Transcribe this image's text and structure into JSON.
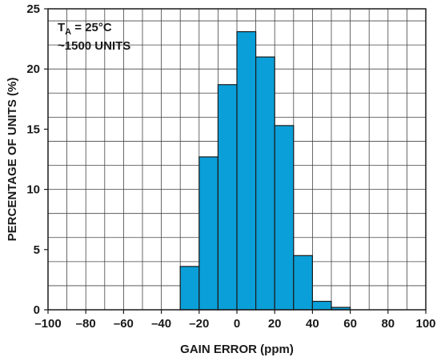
{
  "chart_data": {
    "type": "bar",
    "xlabel": "GAIN ERROR (ppm)",
    "ylabel": "PERCENTAGE OF UNITS (%)",
    "xlim": [
      -100,
      100
    ],
    "ylim": [
      0,
      25
    ],
    "xticks": [
      -100,
      -80,
      -60,
      -40,
      -20,
      0,
      20,
      40,
      60,
      80,
      100
    ],
    "yticks": [
      0,
      5,
      10,
      15,
      20,
      25
    ],
    "x_tick_labels": [
      "–100",
      "–80",
      "–60",
      "–40",
      "–20",
      "0",
      "20",
      "40",
      "60",
      "80",
      "100"
    ],
    "y_tick_labels": [
      "0",
      "5",
      "10",
      "15",
      "20",
      "25"
    ],
    "x_minor_step": 10,
    "y_minor_step": 2,
    "grid": true,
    "bin_width": 10,
    "bins": [
      {
        "start": -30,
        "end": -20,
        "value": 3.6
      },
      {
        "start": -20,
        "end": -10,
        "value": 12.7
      },
      {
        "start": -10,
        "end": 0,
        "value": 18.7
      },
      {
        "start": 0,
        "end": 10,
        "value": 23.1
      },
      {
        "start": 10,
        "end": 20,
        "value": 21.0
      },
      {
        "start": 20,
        "end": 30,
        "value": 15.3
      },
      {
        "start": 30,
        "end": 40,
        "value": 4.5
      },
      {
        "start": 40,
        "end": 50,
        "value": 0.7
      },
      {
        "start": 50,
        "end": 60,
        "value": 0.2
      }
    ],
    "bar_color": "#0a9fd8",
    "annotation": {
      "t_main": "T",
      "t_sub": "A",
      "t_rest": " = 25°C",
      "units": "~1500 UNITS"
    }
  }
}
